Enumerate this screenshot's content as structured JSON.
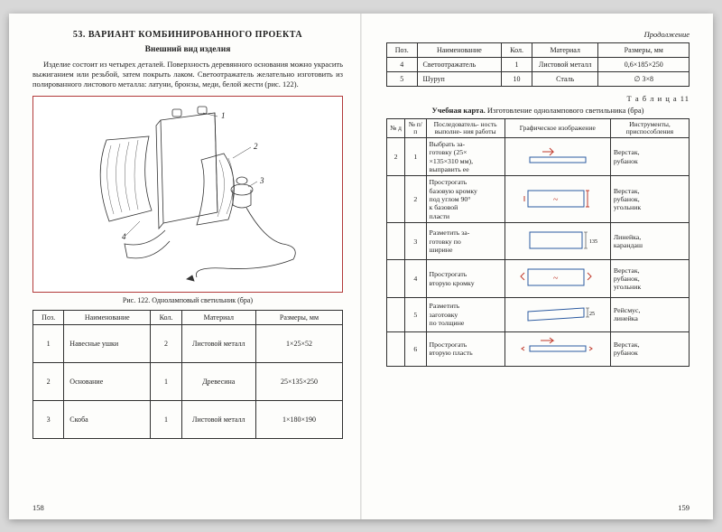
{
  "left": {
    "section": "53. ВАРИАНТ КОМБИНИРОВАННОГО ПРОЕКТА",
    "subtitle": "Внешний вид изделия",
    "paragraph": "Изделие состоит из четырех деталей. Поверхность деревянного основания можно украсить выжиганием или резьбой, затем покрыть лаком. Светоотражатель желательно изготовить из полированного листового металла: латуни, бронзы, меди, белой жести (рис. 122).",
    "figure_caption": "Рис. 122. Одноламповый светильник (бра)",
    "table": {
      "headers": [
        "Поз.",
        "Наименование",
        "Кол.",
        "Материал",
        "Размеры, мм"
      ],
      "rows": [
        [
          "1",
          "Навесные ушки",
          "2",
          "Листовой металл",
          "1×25×52"
        ],
        [
          "2",
          "Основание",
          "1",
          "Древесина",
          "25×135×250"
        ],
        [
          "3",
          "Скоба",
          "1",
          "Листовой металл",
          "1×180×190"
        ]
      ]
    },
    "page_num": "158"
  },
  "right": {
    "continuation": "Продолжение",
    "top_table": {
      "headers": [
        "Поз.",
        "Наименование",
        "Кол.",
        "Материал",
        "Размеры, мм"
      ],
      "rows": [
        [
          "4",
          "Светоотражатель",
          "1",
          "Листовой металл",
          "0,6×185×250"
        ],
        [
          "5",
          "Шуруп",
          "10",
          "Сталь",
          "∅ 3×8"
        ]
      ]
    },
    "table_label": "Т а б л и ц а  11",
    "card_title_bold": "Учебная карта.",
    "card_title_rest": " Изготовление однолампового светильника (бра)",
    "proc_table": {
      "headers": [
        "№ д",
        "№ п/п",
        "Последователь-\nность выполне-\nния работы",
        "Графическое\nизображение",
        "Инструменты,\nприспособления"
      ],
      "rows": [
        {
          "d": "2",
          "n": "1",
          "desc": "Выбрать за-\nготовку (25×\n×135×310 мм),\nвыправить ее",
          "tools": "Верстак,\nрубанок"
        },
        {
          "d": "",
          "n": "2",
          "desc": "Прострогать\nбазовую кромку\nпод углом 90°\nк базовой\nпласти",
          "tools": "Верстак,\nрубанок,\nугольник"
        },
        {
          "d": "",
          "n": "3",
          "desc": "Разметить за-\nготовку по\nширине",
          "tools": "Линейка,\nкарандаш"
        },
        {
          "d": "",
          "n": "4",
          "desc": "Прострогать\nвторую кромку",
          "tools": "Верстак,\nрубанок,\nугольник"
        },
        {
          "d": "",
          "n": "5",
          "desc": "Разметить\nзаготовку\nпо толщине",
          "tools": "Рейсмус,\nлинейка"
        },
        {
          "d": "",
          "n": "6",
          "desc": "Прострогать\nвторую пласть",
          "tools": "Верстак,\nрубанок"
        }
      ]
    },
    "page_num": "159"
  },
  "colors": {
    "figure_border": "#b23a3a",
    "diagram_blue": "#2c5aa0",
    "arrow_red": "#c0392b"
  }
}
